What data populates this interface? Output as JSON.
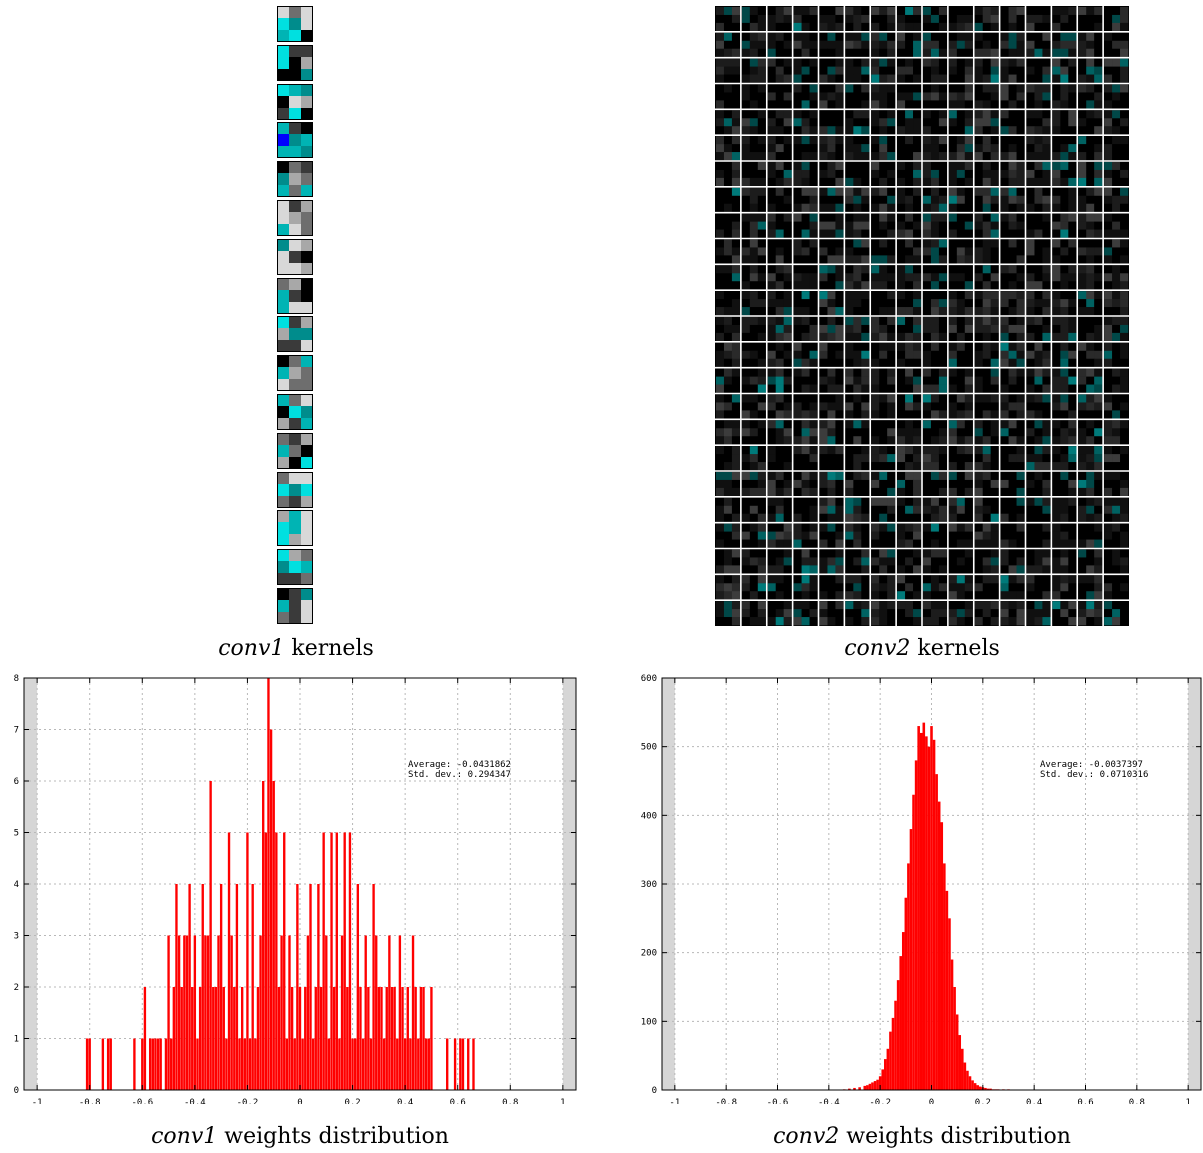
{
  "captions": {
    "conv1_kernels": {
      "name": "conv1",
      "rest": " kernels"
    },
    "conv2_kernels": {
      "name": "conv2",
      "rest": " kernels"
    },
    "conv1_weights": {
      "name": "conv1",
      "rest": " weights distribution"
    },
    "conv2_weights": {
      "name": "conv2",
      "rest": " weights distribution"
    }
  },
  "kernels": {
    "conv1": {
      "count": 16,
      "grid": "3x3",
      "colors": [
        "#000000",
        "#3a3a3a",
        "#6e6e6e",
        "#a8a8a8",
        "#d8d8d8",
        "#008c8c",
        "#00b4b4",
        "#00e0e0",
        "#0000ff"
      ]
    },
    "conv2": {
      "columns": 16,
      "rows": 24,
      "grid": "3x3",
      "colors": [
        "#000000",
        "#101010",
        "#1c1c1c",
        "#2a2a2a",
        "#3c3c3c",
        "#004848",
        "#006262",
        "#007a7a"
      ]
    }
  },
  "chart_data": [
    {
      "type": "bar",
      "title": "",
      "xlabel": "",
      "ylabel": "",
      "xlim": [
        -1.05,
        1.05
      ],
      "ylim": [
        0,
        8
      ],
      "x_ticks": [
        "-1",
        "-0.8",
        "-0.6",
        "-0.4",
        "-0.2",
        "0",
        "0.2",
        "0.4",
        "0.6",
        "0.8",
        "1"
      ],
      "y_ticks": [
        "0",
        "1",
        "2",
        "3",
        "4",
        "5",
        "6",
        "7",
        "8"
      ],
      "grid": true,
      "bar_color": "#ff0000",
      "annotation": [
        "Average: -0.0431862",
        "Std. dev.: 0.294347"
      ],
      "bin_width": 0.009,
      "x": [
        -0.81,
        -0.8,
        -0.75,
        -0.73,
        -0.72,
        -0.63,
        -0.6,
        -0.59,
        -0.57,
        -0.56,
        -0.55,
        -0.54,
        -0.53,
        -0.51,
        -0.5,
        -0.49,
        -0.48,
        -0.47,
        -0.46,
        -0.45,
        -0.44,
        -0.43,
        -0.42,
        -0.41,
        -0.4,
        -0.39,
        -0.38,
        -0.37,
        -0.36,
        -0.35,
        -0.34,
        -0.33,
        -0.32,
        -0.31,
        -0.3,
        -0.29,
        -0.28,
        -0.27,
        -0.26,
        -0.25,
        -0.24,
        -0.23,
        -0.22,
        -0.21,
        -0.2,
        -0.19,
        -0.18,
        -0.17,
        -0.16,
        -0.15,
        -0.14,
        -0.13,
        -0.12,
        -0.11,
        -0.1,
        -0.09,
        -0.08,
        -0.07,
        -0.06,
        -0.05,
        -0.04,
        -0.03,
        -0.02,
        -0.01,
        0.0,
        0.01,
        0.02,
        0.03,
        0.04,
        0.05,
        0.06,
        0.07,
        0.08,
        0.09,
        0.1,
        0.11,
        0.12,
        0.13,
        0.14,
        0.15,
        0.16,
        0.17,
        0.18,
        0.19,
        0.2,
        0.21,
        0.22,
        0.23,
        0.24,
        0.25,
        0.26,
        0.27,
        0.28,
        0.29,
        0.3,
        0.31,
        0.32,
        0.33,
        0.34,
        0.35,
        0.36,
        0.37,
        0.38,
        0.39,
        0.4,
        0.41,
        0.42,
        0.43,
        0.44,
        0.45,
        0.46,
        0.47,
        0.48,
        0.49,
        0.5,
        0.56,
        0.59,
        0.61,
        0.62,
        0.64,
        0.66
      ],
      "values": [
        1,
        1,
        1,
        1,
        1,
        1,
        1,
        2,
        1,
        1,
        1,
        1,
        1,
        1,
        3,
        1,
        2,
        4,
        3,
        2,
        3,
        3,
        4,
        2,
        3,
        1,
        2,
        4,
        3,
        3,
        6,
        2,
        2,
        3,
        4,
        2,
        1,
        5,
        3,
        2,
        4,
        1,
        2,
        1,
        5,
        1,
        4,
        1,
        2,
        3,
        6,
        5,
        8,
        7,
        6,
        5,
        2,
        3,
        5,
        1,
        3,
        2,
        1,
        4,
        2,
        1,
        2,
        3,
        4,
        1,
        2,
        4,
        2,
        5,
        3,
        1,
        5,
        2,
        5,
        1,
        3,
        5,
        2,
        5,
        1,
        1,
        4,
        2,
        1,
        3,
        2,
        1,
        4,
        3,
        2,
        2,
        1,
        2,
        3,
        2,
        2,
        1,
        3,
        2,
        1,
        2,
        1,
        3,
        2,
        1,
        2,
        2,
        1,
        1,
        2,
        1,
        1,
        1,
        1,
        1,
        1
      ]
    },
    {
      "type": "bar",
      "title": "",
      "xlabel": "",
      "ylabel": "",
      "xlim": [
        -1.05,
        1.05
      ],
      "ylim": [
        0,
        600
      ],
      "x_ticks": [
        "-1",
        "-0.8",
        "-0.6",
        "-0.4",
        "-0.2",
        "0",
        "0.2",
        "0.4",
        "0.6",
        "0.8",
        "1"
      ],
      "y_ticks": [
        "0",
        "100",
        "200",
        "300",
        "400",
        "500",
        "600"
      ],
      "grid": true,
      "bar_color": "#ff0000",
      "annotation": [
        "Average: -0.0037397",
        "Std. dev.: 0.0710316"
      ],
      "bin_width": 0.01,
      "x": [
        -0.34,
        -0.32,
        -0.3,
        -0.28,
        -0.26,
        -0.25,
        -0.24,
        -0.23,
        -0.22,
        -0.21,
        -0.2,
        -0.19,
        -0.18,
        -0.17,
        -0.16,
        -0.15,
        -0.14,
        -0.13,
        -0.12,
        -0.11,
        -0.1,
        -0.09,
        -0.08,
        -0.07,
        -0.06,
        -0.05,
        -0.04,
        -0.03,
        -0.02,
        -0.01,
        0.0,
        0.01,
        0.02,
        0.03,
        0.04,
        0.05,
        0.06,
        0.07,
        0.08,
        0.09,
        0.1,
        0.11,
        0.12,
        0.13,
        0.14,
        0.15,
        0.16,
        0.17,
        0.18,
        0.19,
        0.2,
        0.21,
        0.22,
        0.23,
        0.24,
        0.25,
        0.26,
        0.28,
        0.3
      ],
      "values": [
        1,
        2,
        3,
        4,
        6,
        7,
        9,
        11,
        13,
        15,
        20,
        30,
        45,
        60,
        85,
        105,
        130,
        160,
        195,
        230,
        280,
        330,
        380,
        430,
        480,
        530,
        520,
        535,
        515,
        500,
        530,
        510,
        460,
        420,
        390,
        330,
        290,
        250,
        190,
        150,
        110,
        80,
        60,
        40,
        28,
        20,
        14,
        10,
        7,
        5,
        4,
        3,
        2,
        2,
        1,
        1,
        1,
        1,
        1
      ]
    }
  ]
}
